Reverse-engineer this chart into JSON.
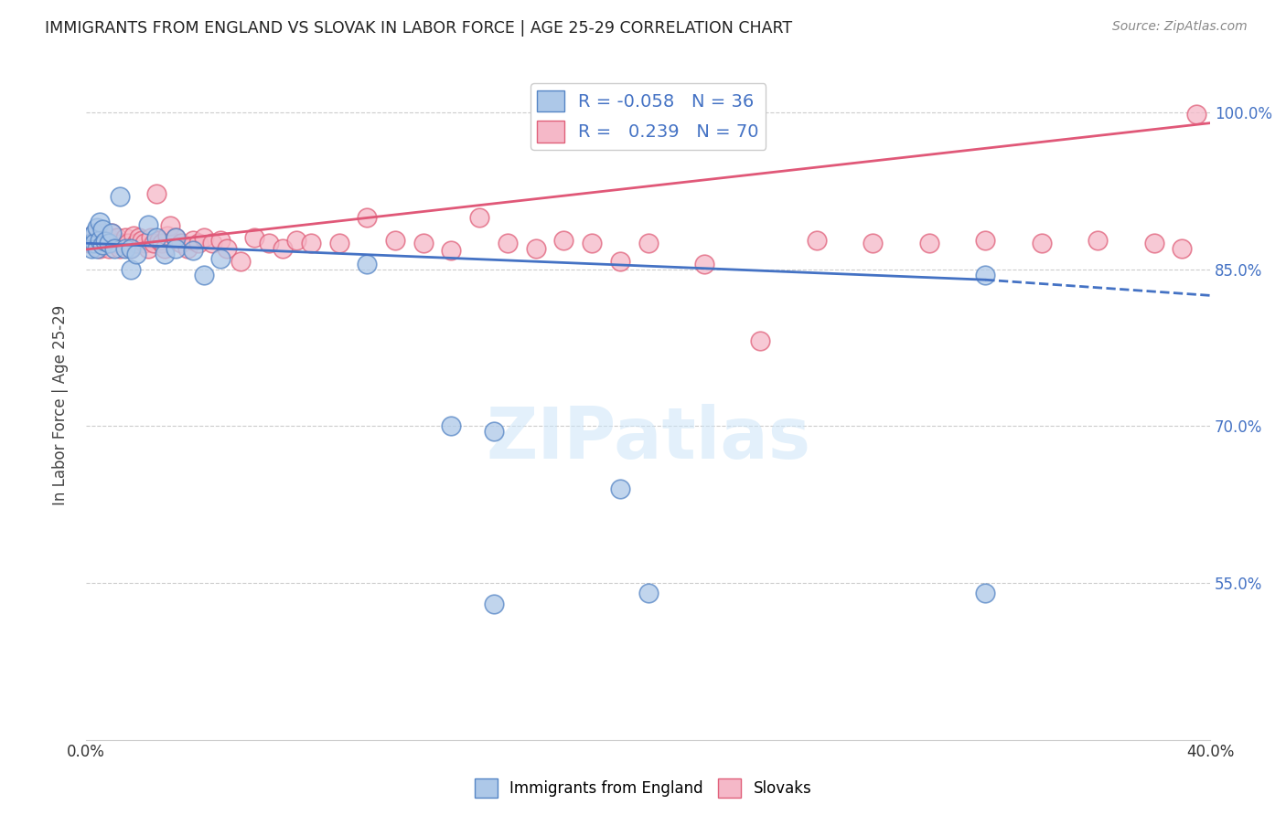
{
  "title": "IMMIGRANTS FROM ENGLAND VS SLOVAK IN LABOR FORCE | AGE 25-29 CORRELATION CHART",
  "source": "Source: ZipAtlas.com",
  "ylabel": "In Labor Force | Age 25-29",
  "xlim": [
    0.0,
    0.4
  ],
  "ylim": [
    0.4,
    1.04
  ],
  "xtick_vals": [
    0.0,
    0.05,
    0.1,
    0.15,
    0.2,
    0.25,
    0.3,
    0.35,
    0.4
  ],
  "xticklabels": [
    "0.0%",
    "",
    "",
    "",
    "",
    "",
    "",
    "",
    "40.0%"
  ],
  "ytick_positions": [
    0.55,
    0.7,
    0.85,
    1.0
  ],
  "ytick_labels": [
    "55.0%",
    "70.0%",
    "85.0%",
    "100.0%"
  ],
  "legend_england_label": "Immigrants from England",
  "legend_slovak_label": "Slovaks",
  "england_R": "-0.058",
  "england_N": "36",
  "slovak_R": "0.239",
  "slovak_N": "70",
  "england_fill_color": "#adc8e8",
  "slovak_fill_color": "#f5b8c8",
  "england_edge_color": "#5585c5",
  "slovak_edge_color": "#e0607a",
  "england_line_color": "#4472c4",
  "slovak_line_color": "#e05878",
  "background_color": "#ffffff",
  "grid_color": "#cccccc",
  "eng_x": [
    0.001,
    0.002,
    0.002,
    0.003,
    0.003,
    0.004,
    0.004,
    0.005,
    0.005,
    0.006,
    0.006,
    0.007,
    0.008,
    0.009,
    0.01,
    0.012,
    0.014,
    0.016,
    0.016,
    0.018,
    0.022,
    0.025,
    0.028,
    0.032,
    0.032,
    0.038,
    0.042,
    0.048,
    0.1,
    0.13,
    0.145,
    0.19,
    0.32,
    0.32,
    0.145,
    0.2
  ],
  "eng_y": [
    0.88,
    0.875,
    0.87,
    0.885,
    0.875,
    0.89,
    0.87,
    0.878,
    0.895,
    0.888,
    0.873,
    0.877,
    0.875,
    0.885,
    0.87,
    0.92,
    0.87,
    0.85,
    0.87,
    0.865,
    0.893,
    0.88,
    0.865,
    0.88,
    0.87,
    0.868,
    0.845,
    0.86,
    0.855,
    0.7,
    0.53,
    0.64,
    0.54,
    0.845,
    0.695,
    0.54
  ],
  "sk_x": [
    0.001,
    0.002,
    0.003,
    0.004,
    0.005,
    0.005,
    0.006,
    0.007,
    0.008,
    0.008,
    0.009,
    0.01,
    0.011,
    0.012,
    0.013,
    0.014,
    0.015,
    0.016,
    0.017,
    0.018,
    0.019,
    0.02,
    0.021,
    0.022,
    0.023,
    0.024,
    0.025,
    0.026,
    0.027,
    0.028,
    0.029,
    0.03,
    0.032,
    0.034,
    0.036,
    0.038,
    0.04,
    0.042,
    0.045,
    0.048,
    0.05,
    0.055,
    0.06,
    0.065,
    0.07,
    0.075,
    0.08,
    0.09,
    0.1,
    0.11,
    0.12,
    0.13,
    0.14,
    0.15,
    0.16,
    0.17,
    0.18,
    0.19,
    0.2,
    0.22,
    0.24,
    0.26,
    0.28,
    0.3,
    0.32,
    0.34,
    0.36,
    0.38,
    0.39,
    0.395
  ],
  "sk_y": [
    0.875,
    0.882,
    0.878,
    0.88,
    0.87,
    0.875,
    0.885,
    0.875,
    0.87,
    0.88,
    0.885,
    0.875,
    0.88,
    0.87,
    0.875,
    0.88,
    0.875,
    0.87,
    0.882,
    0.875,
    0.88,
    0.878,
    0.875,
    0.87,
    0.88,
    0.875,
    0.922,
    0.878,
    0.875,
    0.87,
    0.882,
    0.892,
    0.88,
    0.875,
    0.87,
    0.878,
    0.875,
    0.88,
    0.875,
    0.878,
    0.87,
    0.858,
    0.88,
    0.875,
    0.87,
    0.878,
    0.875,
    0.875,
    0.9,
    0.878,
    0.875,
    0.868,
    0.9,
    0.875,
    0.87,
    0.878,
    0.875,
    0.858,
    0.875,
    0.855,
    0.782,
    0.878,
    0.875,
    0.875,
    0.878,
    0.875,
    0.878,
    0.875,
    0.87,
    0.998
  ],
  "watermark_text": "ZIPatlas"
}
